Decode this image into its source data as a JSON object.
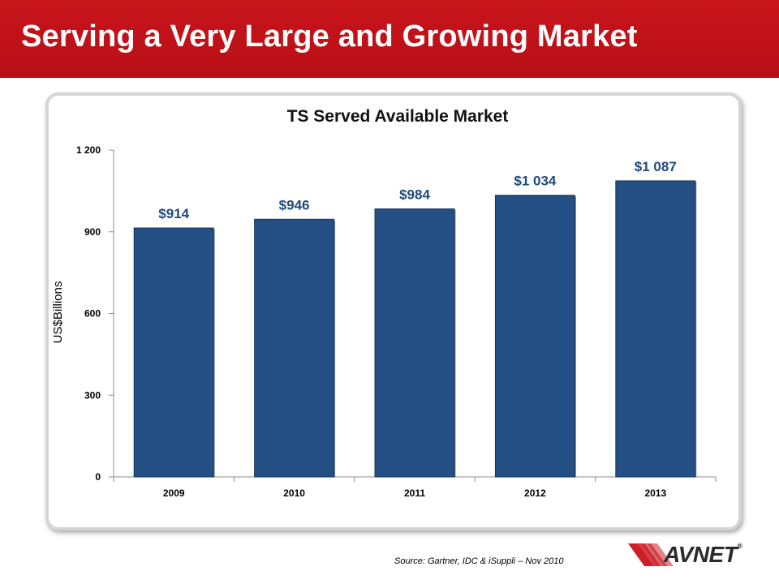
{
  "slide": {
    "title": "Serving a Very Large and Growing Market",
    "source": "Source: Gartner, IDC & iSuppli – Nov 2010",
    "logo_text": "AVNET",
    "logo_reg": "®"
  },
  "colors": {
    "header_red": "#c8141b",
    "bar_fill": "#234f85",
    "bar_label": "#1f497d"
  },
  "chart_data": {
    "type": "bar",
    "title": "TS Served Available Market",
    "xlabel": "",
    "ylabel": "US$Billions",
    "categories": [
      "2009",
      "2010",
      "2011",
      "2012",
      "2013"
    ],
    "values": [
      914,
      946,
      984,
      1034,
      1087
    ],
    "data_labels": [
      "$914",
      "$946",
      "$984",
      "$1 034",
      "$1 087"
    ],
    "ylim": [
      0,
      1200
    ],
    "yticks": [
      0,
      300,
      600,
      900,
      1200
    ],
    "ytick_labels": [
      "0",
      "300",
      "600",
      "900",
      "1 200"
    ],
    "grid": false,
    "legend": "none"
  }
}
